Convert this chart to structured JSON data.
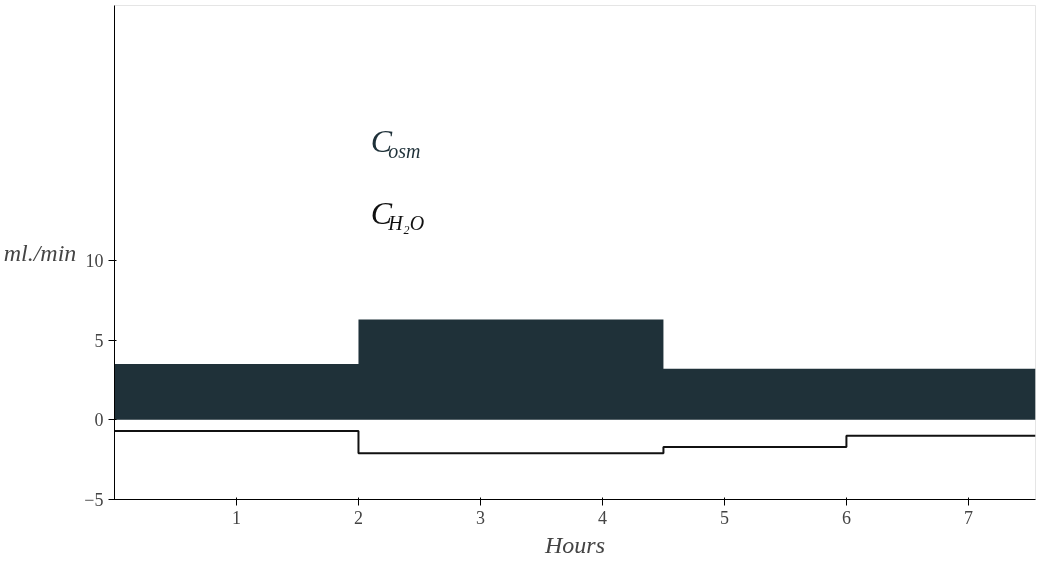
{
  "chart_data": {
    "type": "area",
    "xlabel": "Hours",
    "ylabel": "ml./min",
    "xlim": [
      0,
      7.55
    ],
    "ylim": [
      -5,
      26
    ],
    "xticks": [
      1,
      2,
      3,
      4,
      5,
      6,
      7
    ],
    "yticks": [
      -5,
      0,
      5,
      10
    ],
    "grid": false,
    "legend": "top",
    "series": [
      {
        "name": "C$_{osm}$",
        "color": "#1f3139",
        "x": [
          0,
          2,
          2,
          4.5,
          4.5,
          7.55
        ],
        "values": [
          3.5,
          3.5,
          6.3,
          6.3,
          3.2,
          3.2
        ]
      },
      {
        "name": "C$_{H₂O}$",
        "type": "step",
        "color": "#111111",
        "x": [
          0,
          2,
          4.5,
          6,
          7.55
        ],
        "values": [
          -0.7,
          -2.1,
          -1.7,
          -1.0,
          -1.0
        ]
      }
    ]
  }
}
